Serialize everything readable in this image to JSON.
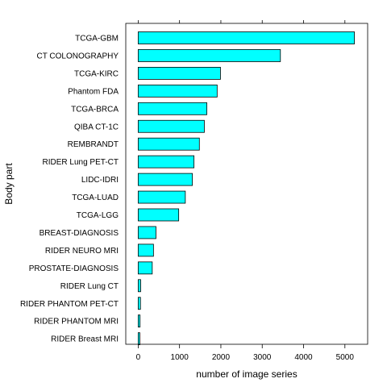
{
  "chart_data": {
    "type": "bar",
    "orientation": "horizontal",
    "title": "",
    "xlabel": "number of image series",
    "ylabel": "Body part",
    "xlim": [
      -300,
      5550
    ],
    "xticks": [
      0,
      1000,
      2000,
      3000,
      4000,
      5000
    ],
    "grid": false,
    "legend": "none",
    "bar_color": "#00ffff",
    "categories": [
      "TCGA-GBM",
      "CT COLONOGRAPHY",
      "TCGA-KIRC",
      "Phantom FDA",
      "TCGA-BRCA",
      "QIBA CT-1C",
      "REMBRANDT",
      "RIDER Lung PET-CT",
      "LIDC-IDRI",
      "TCGA-LUAD",
      "TCGA-LGG",
      "BREAST-DIAGNOSIS",
      "RIDER NEURO MRI",
      "PROSTATE-DIAGNOSIS",
      "RIDER Lung CT",
      "RIDER PHANTOM PET-CT",
      "RIDER PHANTOM MRI",
      "RIDER Breast MRI"
    ],
    "values": [
      5230,
      3440,
      1990,
      1910,
      1660,
      1600,
      1480,
      1350,
      1310,
      1140,
      980,
      430,
      370,
      340,
      60,
      55,
      45,
      40
    ]
  }
}
